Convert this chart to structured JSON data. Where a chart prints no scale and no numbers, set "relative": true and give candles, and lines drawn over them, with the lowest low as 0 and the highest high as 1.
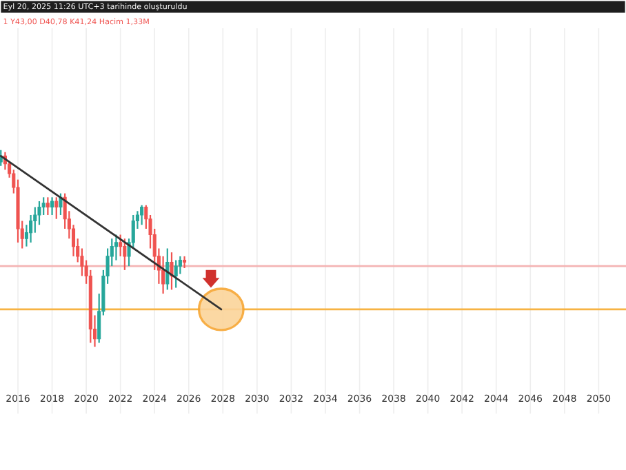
{
  "chart_data": {
    "type": "candlestick",
    "relative": true,
    "annotations": [
      "Eyl 20, 2025 11:26 UTC+3 tarihinde oluşturuldu",
      "1 Y43,00 D40,78 K41,24 Hacim 1,33M"
    ],
    "x": [
      2015.0,
      2015.25,
      2015.5,
      2015.75,
      2016.0,
      2016.25,
      2016.5,
      2016.75,
      2017.0,
      2017.25,
      2017.5,
      2017.75,
      2018.0,
      2018.25,
      2018.5,
      2018.75,
      2019.0,
      2019.25,
      2019.5,
      2019.75,
      2020.0,
      2020.25,
      2020.5,
      2020.75,
      2021.0,
      2021.25,
      2021.5,
      2021.75,
      2022.0,
      2022.25,
      2022.5,
      2022.75,
      2023.0,
      2023.25,
      2023.5,
      2023.75,
      2024.0,
      2024.25,
      2024.5,
      2024.75,
      2025.0,
      2025.25,
      2025.5,
      2025.75
    ],
    "ohlc": [
      [
        0.94,
        1.0,
        0.92,
        0.97
      ],
      [
        0.97,
        0.99,
        0.9,
        0.93
      ],
      [
        0.93,
        0.94,
        0.86,
        0.88
      ],
      [
        0.88,
        0.9,
        0.78,
        0.81
      ],
      [
        0.81,
        0.85,
        0.53,
        0.6
      ],
      [
        0.6,
        0.64,
        0.5,
        0.55
      ],
      [
        0.55,
        0.62,
        0.51,
        0.58
      ],
      [
        0.58,
        0.67,
        0.53,
        0.64
      ],
      [
        0.64,
        0.71,
        0.58,
        0.67
      ],
      [
        0.67,
        0.74,
        0.62,
        0.71
      ],
      [
        0.71,
        0.76,
        0.67,
        0.73
      ],
      [
        0.73,
        0.76,
        0.67,
        0.71
      ],
      [
        0.71,
        0.76,
        0.67,
        0.74
      ],
      [
        0.74,
        0.76,
        0.65,
        0.71
      ],
      [
        0.71,
        0.78,
        0.67,
        0.76
      ],
      [
        0.76,
        0.78,
        0.6,
        0.65
      ],
      [
        0.65,
        0.69,
        0.55,
        0.6
      ],
      [
        0.6,
        0.62,
        0.46,
        0.51
      ],
      [
        0.51,
        0.55,
        0.43,
        0.46
      ],
      [
        0.46,
        0.5,
        0.36,
        0.41
      ],
      [
        0.41,
        0.44,
        0.32,
        0.36
      ],
      [
        0.36,
        0.39,
        0.02,
        0.09
      ],
      [
        0.09,
        0.16,
        0.0,
        0.04
      ],
      [
        0.04,
        0.27,
        0.02,
        0.18
      ],
      [
        0.18,
        0.39,
        0.16,
        0.36
      ],
      [
        0.36,
        0.5,
        0.32,
        0.46
      ],
      [
        0.46,
        0.55,
        0.41,
        0.51
      ],
      [
        0.51,
        0.57,
        0.44,
        0.53
      ],
      [
        0.53,
        0.57,
        0.46,
        0.51
      ],
      [
        0.51,
        0.55,
        0.39,
        0.46
      ],
      [
        0.46,
        0.55,
        0.41,
        0.53
      ],
      [
        0.53,
        0.67,
        0.5,
        0.64
      ],
      [
        0.64,
        0.69,
        0.6,
        0.67
      ],
      [
        0.67,
        0.72,
        0.62,
        0.71
      ],
      [
        0.71,
        0.72,
        0.6,
        0.65
      ],
      [
        0.65,
        0.67,
        0.5,
        0.57
      ],
      [
        0.57,
        0.6,
        0.39,
        0.46
      ],
      [
        0.46,
        0.5,
        0.32,
        0.39
      ],
      [
        0.39,
        0.46,
        0.27,
        0.32
      ],
      [
        0.32,
        0.5,
        0.29,
        0.43
      ],
      [
        0.43,
        0.48,
        0.29,
        0.36
      ],
      [
        0.36,
        0.44,
        0.3,
        0.41
      ],
      [
        0.41,
        0.46,
        0.37,
        0.44
      ],
      [
        0.44,
        0.46,
        0.4,
        0.43
      ]
    ],
    "series": [
      {
        "type": "line",
        "color": "#333333",
        "x": [
          2015.0,
          2027.9
        ],
        "values": [
          0.97,
          0.19
        ]
      }
    ],
    "ref_lines": [
      {
        "axis": "y",
        "value": 0.41,
        "color": "#f4b4b4"
      },
      {
        "axis": "y",
        "value": 0.19,
        "color": "#f7b343"
      }
    ],
    "xlim": [
      2014.95,
      2051.6
    ],
    "xticks": [
      2016,
      2018,
      2020,
      2022,
      2024,
      2026,
      2028,
      2030,
      2032,
      2034,
      2036,
      2038,
      2040,
      2042,
      2044,
      2046,
      2048,
      2050
    ],
    "grid": "x"
  }
}
